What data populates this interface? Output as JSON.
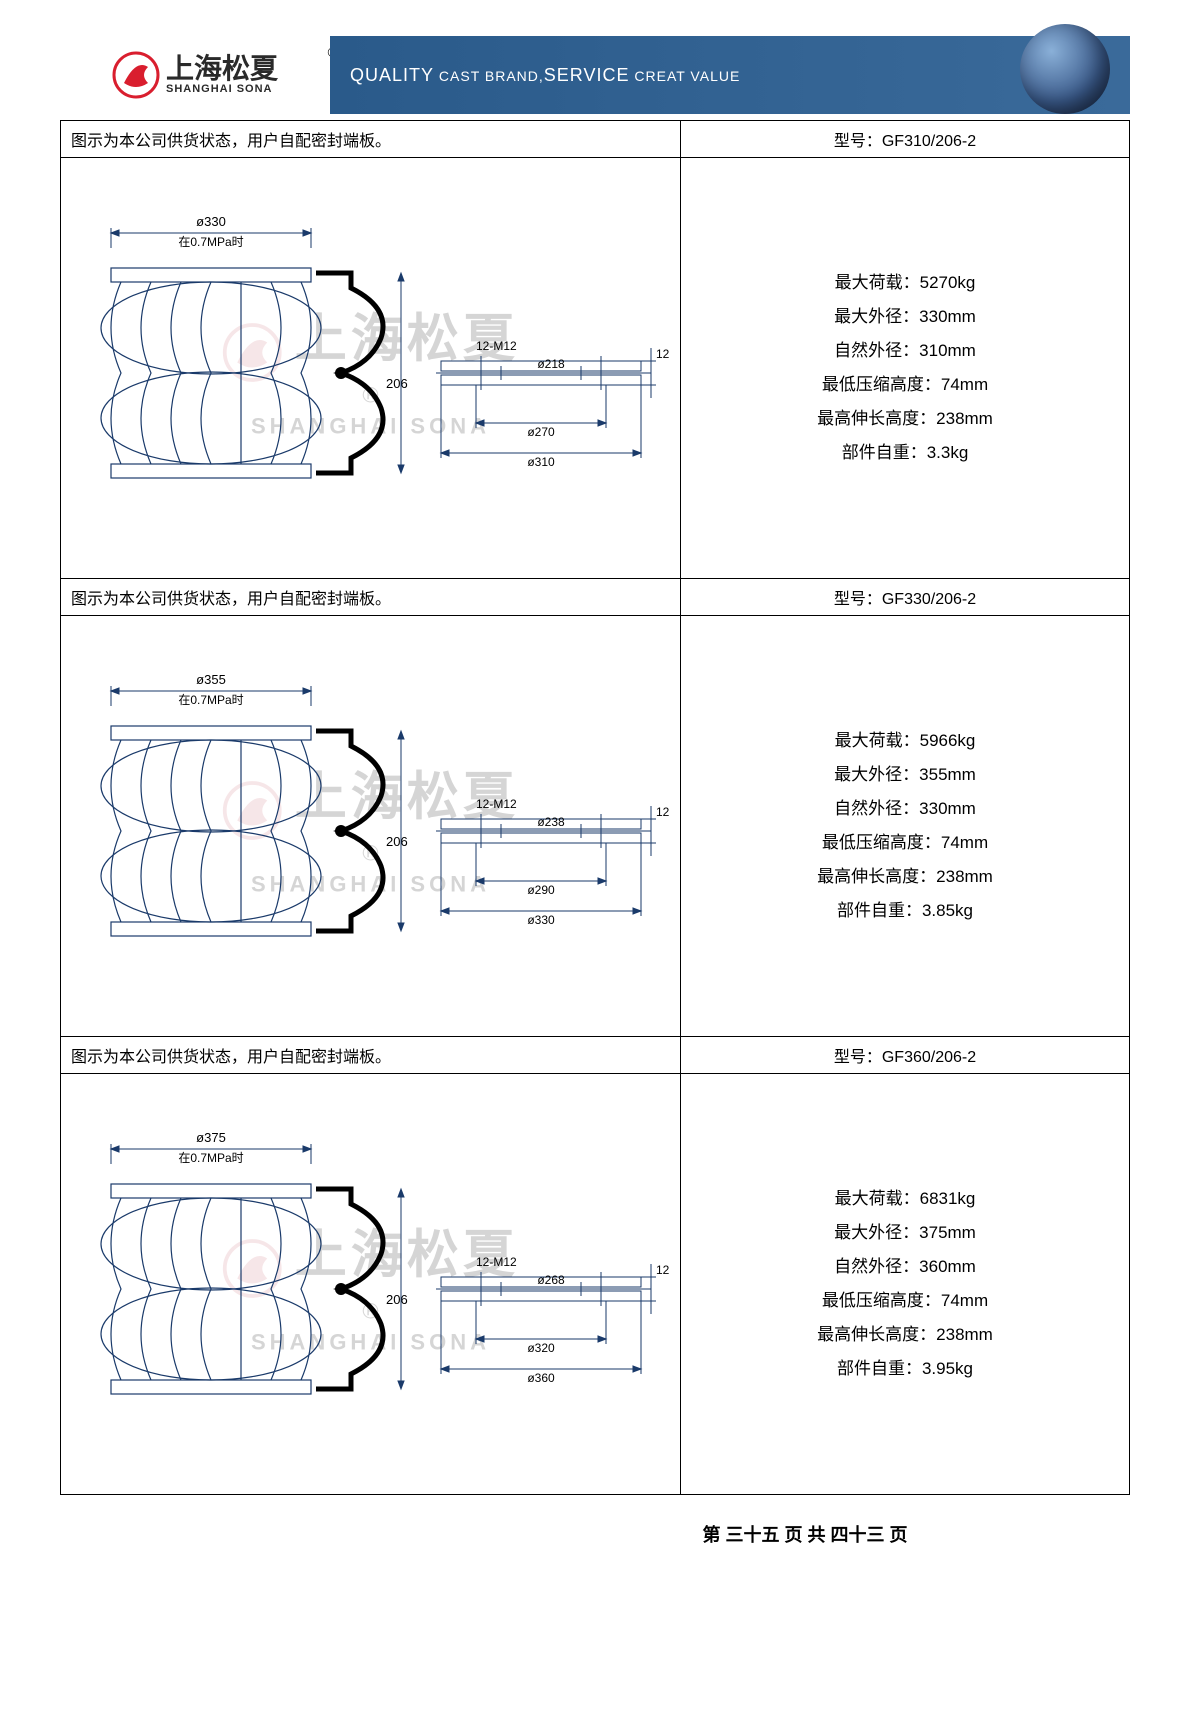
{
  "header": {
    "logo_cn": "上海松夏",
    "logo_en": "SHANGHAI SONA",
    "banner_quality": "QUALITY",
    "banner_cast": " CAST BRAND,",
    "banner_service": "SERVICE",
    "banner_creat": " CREAT VALUE"
  },
  "watermark": {
    "cn": "上海松夏",
    "en": "SHANGHAI SONA"
  },
  "products": [
    {
      "drawing_note": "图示为本公司供货状态，用户自配密封端板。",
      "model_label": "型号：",
      "model": "GF310/206-2",
      "drawing": {
        "outer_dia_label": "ø330",
        "pressure_label": "在0.7MPa时",
        "height": "206",
        "bolt": "12-M12",
        "d1": "ø218",
        "d2": "ø270",
        "d3": "ø310",
        "flange_t": "12"
      },
      "specs": [
        {
          "label": "最大荷载：",
          "value": "5270kg"
        },
        {
          "label": "最大外径：",
          "value": "330mm"
        },
        {
          "label": "自然外径：",
          "value": "310mm"
        },
        {
          "label": "最低压缩高度：",
          "value": "74mm"
        },
        {
          "label": "最高伸长高度：",
          "value": "238mm"
        },
        {
          "label": "部件自重：",
          "value": "3.3kg"
        }
      ]
    },
    {
      "drawing_note": "图示为本公司供货状态，用户自配密封端板。",
      "model_label": "型号：",
      "model": "GF330/206-2",
      "drawing": {
        "outer_dia_label": "ø355",
        "pressure_label": "在0.7MPa时",
        "height": "206",
        "bolt": "12-M12",
        "d1": "ø238",
        "d2": "ø290",
        "d3": "ø330",
        "flange_t": "12"
      },
      "specs": [
        {
          "label": "最大荷载：",
          "value": "5966kg"
        },
        {
          "label": "最大外径：",
          "value": "355mm"
        },
        {
          "label": "自然外径：",
          "value": "330mm"
        },
        {
          "label": "最低压缩高度：",
          "value": "74mm"
        },
        {
          "label": "最高伸长高度：",
          "value": "238mm"
        },
        {
          "label": "部件自重：",
          "value": "3.85kg"
        }
      ]
    },
    {
      "drawing_note": "图示为本公司供货状态，用户自配密封端板。",
      "model_label": "型号：",
      "model": "GF360/206-2",
      "drawing": {
        "outer_dia_label": "ø375",
        "pressure_label": "在0.7MPa时",
        "height": "206",
        "bolt": "12-M12",
        "d1": "ø268",
        "d2": "ø320",
        "d3": "ø360",
        "flange_t": "12"
      },
      "specs": [
        {
          "label": "最大荷载：",
          "value": "6831kg"
        },
        {
          "label": "最大外径：",
          "value": "375mm"
        },
        {
          "label": "自然外径：",
          "value": "360mm"
        },
        {
          "label": "最低压缩高度：",
          "value": "74mm"
        },
        {
          "label": "最高伸长高度：",
          "value": "238mm"
        },
        {
          "label": "部件自重：",
          "value": "3.95kg"
        }
      ]
    }
  ],
  "footer": {
    "text": "第 三十五 页 共 四十三 页"
  },
  "colors": {
    "logo_red": "#d91e2e",
    "banner_bg": "#3a6a9a",
    "text": "#000000",
    "watermark": "#888888"
  }
}
